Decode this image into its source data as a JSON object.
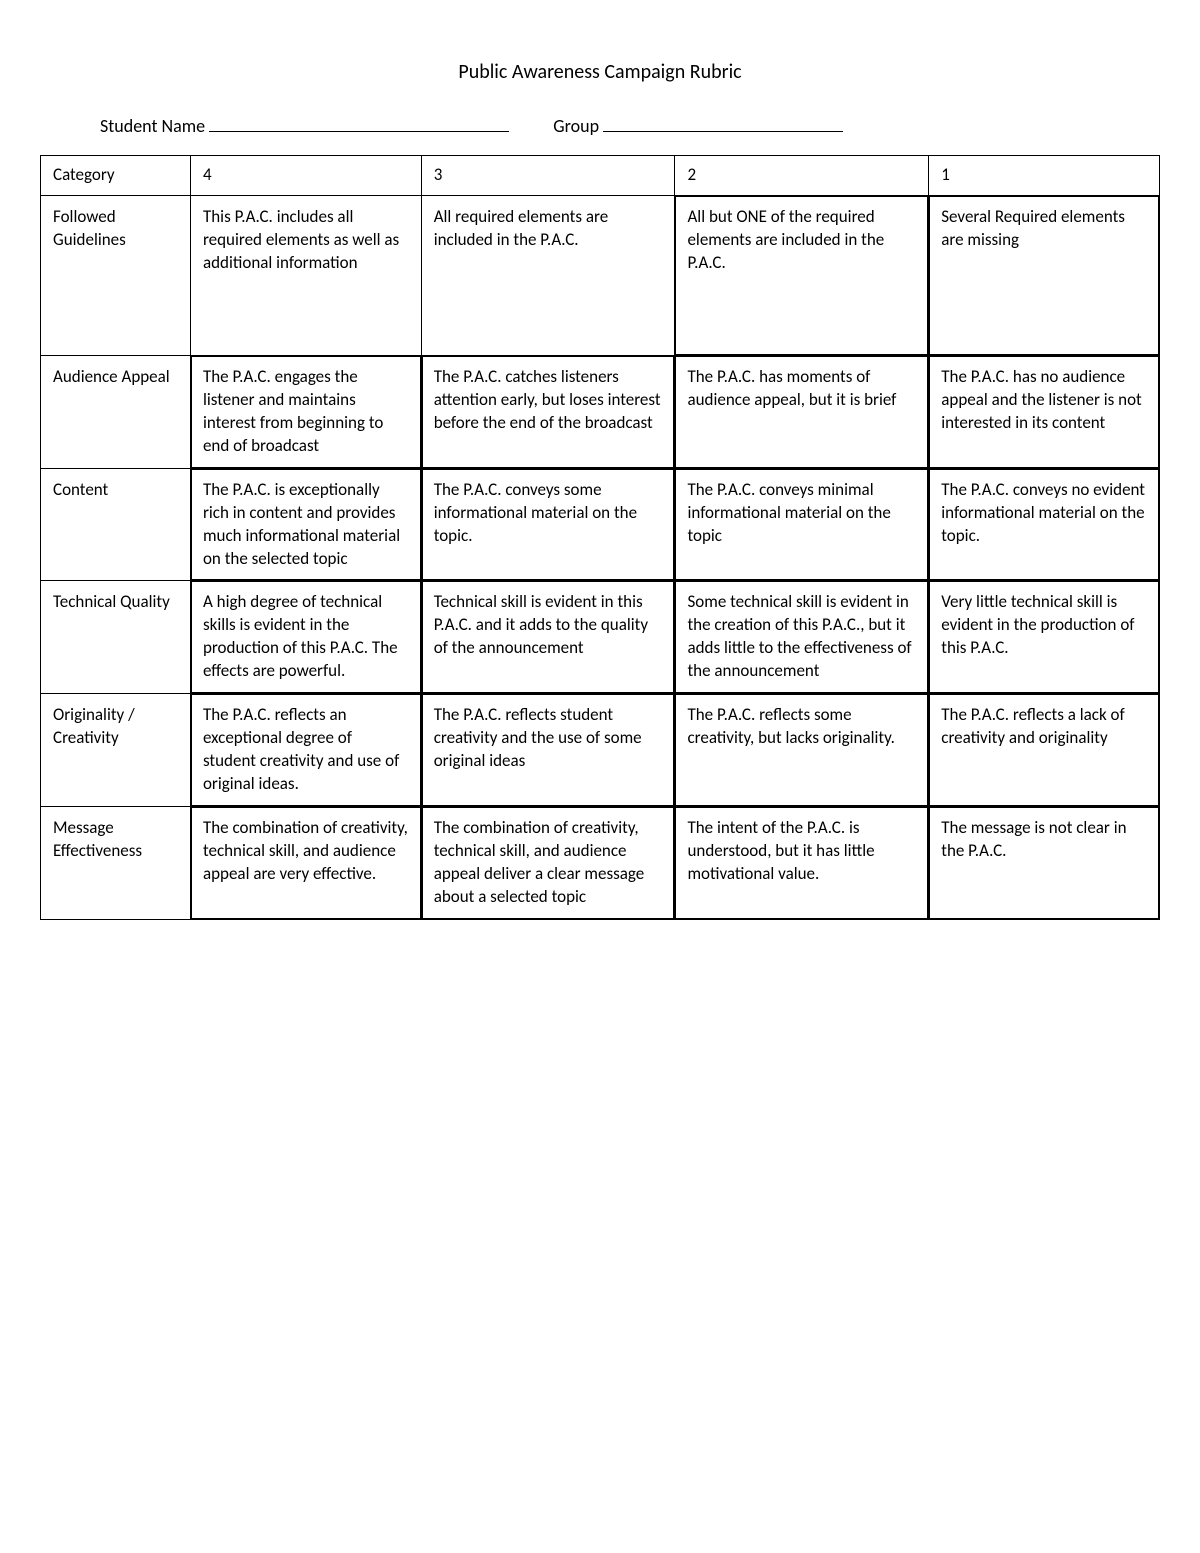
{
  "title": "Public Awareness Campaign Rubric",
  "form": {
    "student_label": "Student Name",
    "group_label": "Group"
  },
  "table": {
    "header": {
      "category": "Category",
      "c4": "4",
      "c3": "3",
      "c2": "2",
      "c1": "1"
    },
    "rows": [
      {
        "category": "Followed Guidelines",
        "c4": "This P.A.C. includes all required elements as well as additional information",
        "c3": "All required elements are included in the P.A.C.",
        "c2": "All but ONE of the required elements are included in the P.A.C.",
        "c1": "Several Required elements are missing"
      },
      {
        "category": "Audience Appeal",
        "c4": "The P.A.C. engages the listener and maintains interest from beginning to end of broadcast",
        "c3": "The P.A.C. catches listeners attention early, but loses interest before the end of the broadcast",
        "c2": "The P.A.C. has moments of audience appeal, but it is brief",
        "c1": "The P.A.C. has no audience appeal and the listener is not interested in its content"
      },
      {
        "category": "Content",
        "c4": "The P.A.C. is exceptionally rich in content and provides much informational material on the selected topic",
        "c3": "The P.A.C. conveys some informational material on the topic.",
        "c2": "The P.A.C. conveys minimal informational material on the topic",
        "c1": "The P.A.C. conveys no evident informational material on the topic."
      },
      {
        "category": "Technical Quality",
        "c4": "A high degree of technical skills is evident in the production of this P.A.C.  The effects are powerful.",
        "c3": "Technical skill is evident in this P.A.C. and it adds to the quality of the announcement",
        "c2": "Some technical skill is evident in the creation of this P.A.C., but it adds little to the effectiveness of the announcement",
        "c1": "Very little technical skill is evident in the production of this P.A.C."
      },
      {
        "category": "Originality / Creativity",
        "c4": "The P.A.C. reflects an exceptional degree of student creativity and use of original ideas.",
        "c3": "The P.A.C. reflects student creativity and the use of some original ideas",
        "c2": "The P.A.C. reflects some creativity, but lacks originality.",
        "c1": "The P.A.C. reflects a lack of creativity and originality"
      },
      {
        "category": "Message Effectiveness",
        "c4": "The combination of creativity, technical skill, and audience appeal are very effective.",
        "c3": "The combination of creativity, technical skill, and audience appeal deliver a clear message about a selected topic",
        "c2": "The intent of the P.A.C. is understood, but it has little motivational value.",
        "c1": "The message is not clear in the P.A.C."
      }
    ]
  }
}
